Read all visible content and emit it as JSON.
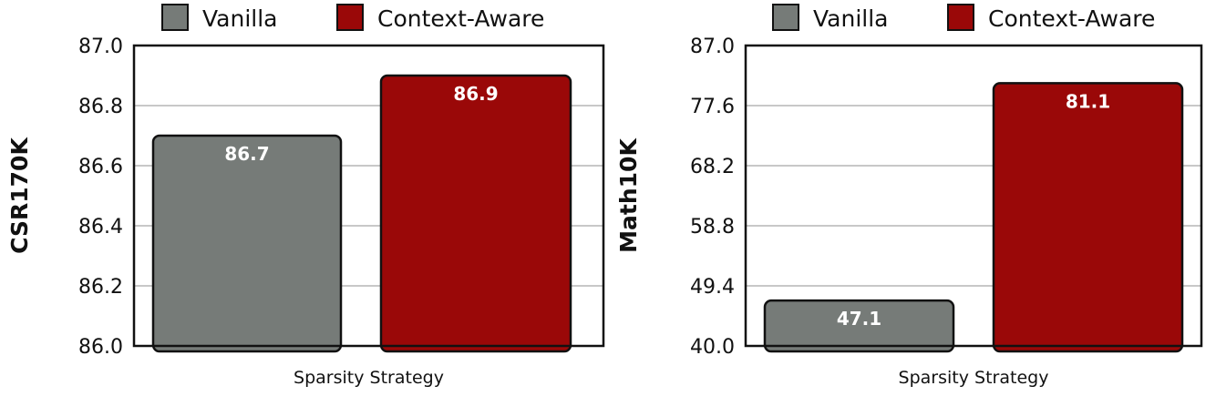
{
  "colors": {
    "vanilla": "#767b78",
    "context_aware": "#9a0808",
    "grid": "#c8c8c8",
    "frame": "#111111"
  },
  "legend": [
    "Vanilla",
    "Context-Aware"
  ],
  "chart_data": [
    {
      "type": "bar",
      "title": "",
      "xlabel": "Sparsity Strategy",
      "ylabel": "CSR170K",
      "categories": [
        "Vanilla",
        "Context-Aware"
      ],
      "values": [
        86.7,
        86.9
      ],
      "value_labels": [
        "86.7",
        "86.9"
      ],
      "ylim": [
        86.0,
        87.0
      ],
      "yticks": [
        "86.0",
        "86.2",
        "86.4",
        "86.6",
        "86.8",
        "87.0"
      ],
      "grid": true,
      "legend_position": "top"
    },
    {
      "type": "bar",
      "title": "",
      "xlabel": "Sparsity Strategy",
      "ylabel": "Math10K",
      "categories": [
        "Vanilla",
        "Context-Aware"
      ],
      "values": [
        47.1,
        81.1
      ],
      "value_labels": [
        "47.1",
        "81.1"
      ],
      "ylim": [
        40.0,
        87.0
      ],
      "yticks": [
        "40.0",
        "49.4",
        "58.8",
        "68.2",
        "77.6",
        "87.0"
      ],
      "grid": true,
      "legend_position": "top"
    }
  ]
}
